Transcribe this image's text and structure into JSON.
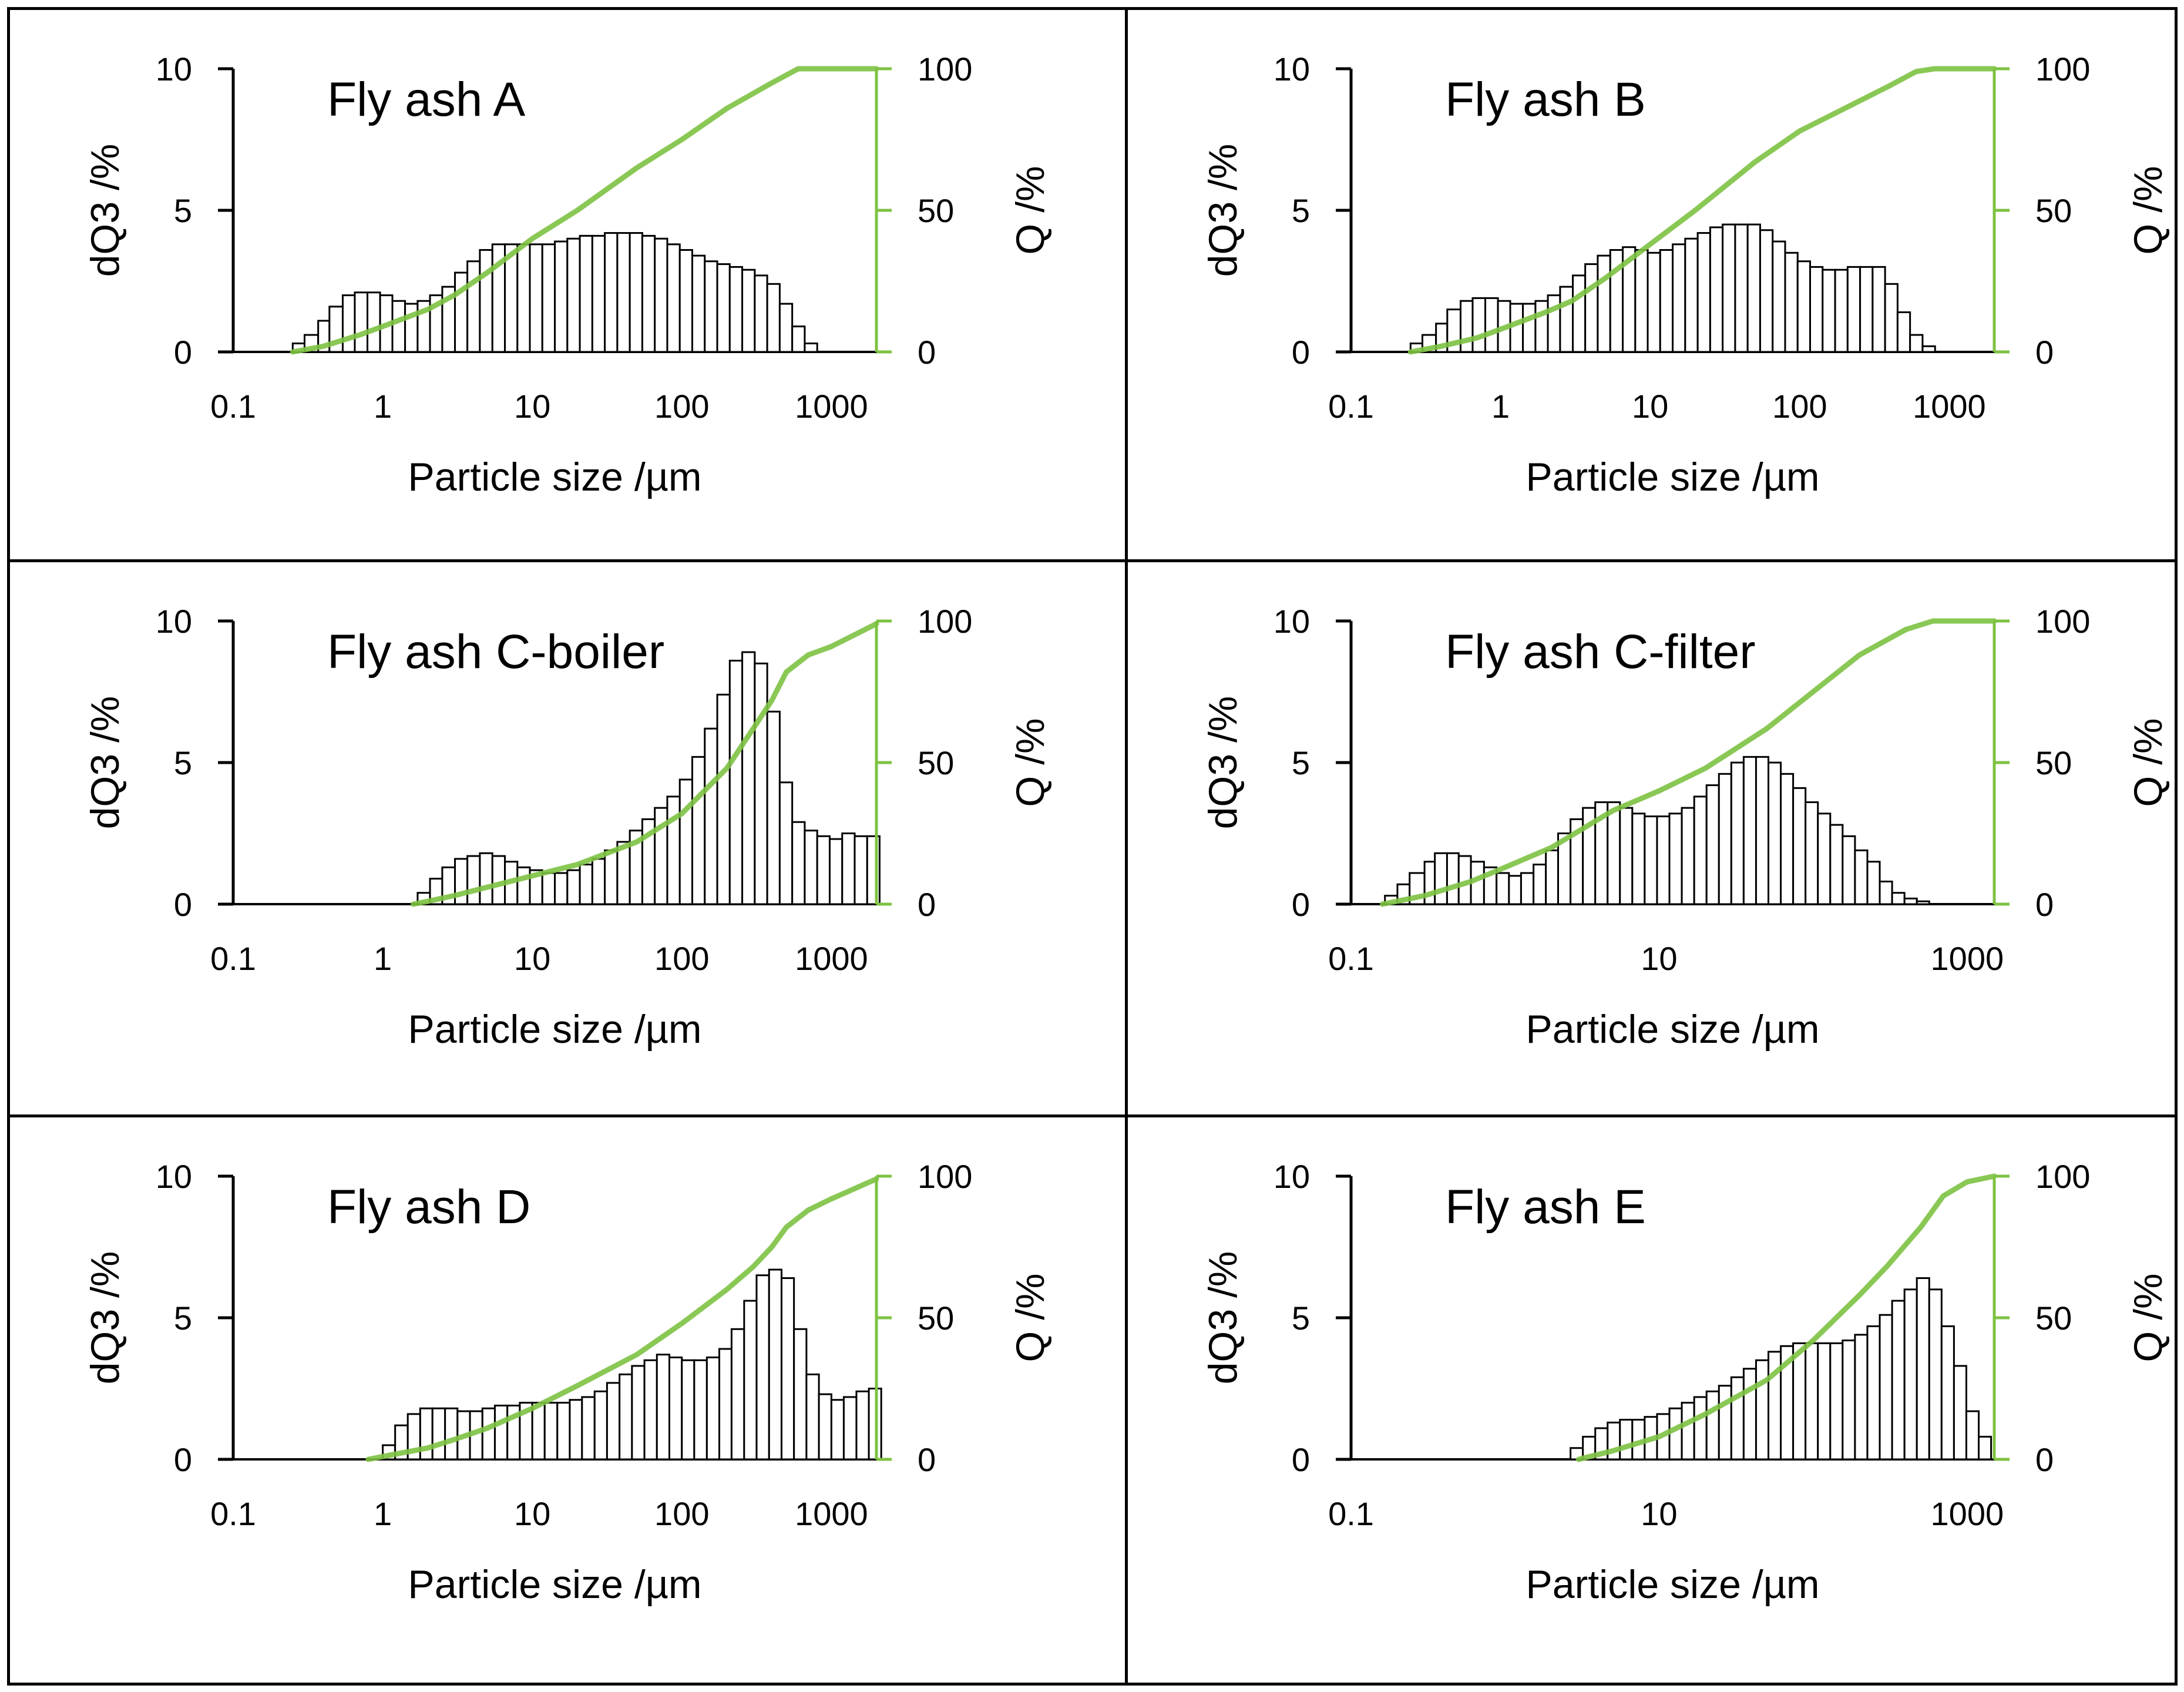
{
  "figure": {
    "left_axis_label": "dQ3 /%",
    "right_axis_label": "Q /%",
    "x_axis_label": "Particle size /µm",
    "left_ticks": [
      "0",
      "5",
      "10"
    ],
    "right_ticks": [
      "0",
      "50",
      "100"
    ],
    "colors": {
      "bar_fill": "#ffffff",
      "bar_stroke": "#000000",
      "cumulative": "#7dc242",
      "right_axis": "#7dc242"
    }
  },
  "chart_data": [
    {
      "type": "bar",
      "title": "Fly ash A",
      "xscale": "log",
      "xlim": [
        0.1,
        2000
      ],
      "ylim": [
        0,
        10
      ],
      "y2lim": [
        0,
        100
      ],
      "xticks": [
        0.1,
        1,
        10,
        100,
        1000
      ],
      "xtick_labels": [
        "0.1",
        "1",
        "10",
        "100",
        "1000"
      ],
      "xlabel": "Particle size /µm",
      "ylabel": "dQ3 /%",
      "y2label": "Q /%",
      "bar_left_edges": [
        0.25,
        0.3,
        0.37,
        0.44,
        0.54,
        0.65,
        0.79,
        0.96,
        1.16,
        1.41,
        1.71,
        2.07,
        2.5,
        3.04,
        3.68,
        4.46,
        5.41,
        6.56,
        7.95,
        9.63,
        11.67,
        14.15,
        17.15,
        20.79,
        25.2,
        30.54,
        37.02,
        44.87,
        54.39,
        65.93,
        79.91,
        96.86,
        117.4,
        142.3,
        172.5,
        209.1,
        253.4,
        307.2,
        372.3,
        451.3,
        547.0,
        663.0,
        803.7
      ],
      "values": [
        0.3,
        0.6,
        1.1,
        1.6,
        2.0,
        2.1,
        2.1,
        2.0,
        1.8,
        1.7,
        1.8,
        2.0,
        2.3,
        2.8,
        3.2,
        3.6,
        3.8,
        3.8,
        3.8,
        3.8,
        3.8,
        3.9,
        4.0,
        4.1,
        4.1,
        4.2,
        4.2,
        4.2,
        4.1,
        4.0,
        3.8,
        3.6,
        3.4,
        3.2,
        3.1,
        3.0,
        2.9,
        2.7,
        2.4,
        1.7,
        0.9,
        0.3,
        0.0
      ],
      "cumulative_x": [
        0.25,
        0.4,
        0.7,
        1,
        2,
        3,
        5,
        10,
        20,
        50,
        100,
        200,
        400,
        600,
        800,
        2000
      ],
      "cumulative_q": [
        0,
        2,
        6,
        9,
        15,
        20,
        28,
        40,
        50,
        65,
        75,
        86,
        95,
        100,
        100,
        100
      ]
    },
    {
      "type": "bar",
      "title": "Fly ash B",
      "xscale": "log",
      "xlim": [
        0.1,
        2000
      ],
      "ylim": [
        0,
        10
      ],
      "y2lim": [
        0,
        100
      ],
      "xticks": [
        0.1,
        1,
        10,
        100,
        1000
      ],
      "xtick_labels": [
        "0.1",
        "1",
        "10",
        "100",
        "1000"
      ],
      "xlabel": "Particle size /µm",
      "ylabel": "dQ3 /%",
      "y2label": "Q /%",
      "bar_left_edges": [
        0.25,
        0.3,
        0.37,
        0.44,
        0.54,
        0.65,
        0.79,
        0.96,
        1.16,
        1.41,
        1.71,
        2.07,
        2.5,
        3.04,
        3.68,
        4.46,
        5.41,
        6.56,
        7.95,
        9.63,
        11.67,
        14.15,
        17.15,
        20.79,
        25.2,
        30.54,
        37.02,
        44.87,
        54.39,
        65.93,
        79.91,
        96.86,
        117.4,
        142.3,
        172.5,
        209.1,
        253.4,
        307.2,
        372.3,
        451.3,
        547.0,
        663.0,
        803.7
      ],
      "values": [
        0.3,
        0.6,
        1.0,
        1.5,
        1.8,
        1.9,
        1.9,
        1.8,
        1.7,
        1.7,
        1.8,
        2.0,
        2.3,
        2.7,
        3.1,
        3.4,
        3.6,
        3.7,
        3.6,
        3.5,
        3.6,
        3.8,
        4.0,
        4.2,
        4.4,
        4.5,
        4.5,
        4.5,
        4.3,
        3.9,
        3.5,
        3.2,
        3.0,
        2.9,
        2.9,
        3.0,
        3.0,
        3.0,
        2.4,
        1.4,
        0.6,
        0.2,
        0.0
      ],
      "cumulative_x": [
        0.25,
        0.4,
        0.7,
        1,
        2,
        3,
        5,
        10,
        20,
        50,
        100,
        200,
        400,
        600,
        800,
        2000
      ],
      "cumulative_q": [
        0,
        2,
        5,
        8,
        14,
        18,
        26,
        38,
        50,
        67,
        78,
        86,
        94,
        99,
        100,
        100
      ]
    },
    {
      "type": "bar",
      "title": "Fly ash C-boiler",
      "xscale": "log",
      "xlim": [
        0.1,
        2000
      ],
      "ylim": [
        0,
        10
      ],
      "y2lim": [
        0,
        100
      ],
      "xticks": [
        0.1,
        1,
        10,
        100,
        1000
      ],
      "xtick_labels": [
        "0.1",
        "1",
        "10",
        "100",
        "1000"
      ],
      "xlabel": "Particle size /µm",
      "ylabel": "dQ3 /%",
      "y2label": "Q /%",
      "bar_left_edges": [
        1.71,
        2.07,
        2.5,
        3.04,
        3.68,
        4.46,
        5.41,
        6.56,
        7.95,
        9.63,
        11.67,
        14.15,
        17.15,
        20.79,
        25.2,
        30.54,
        37.02,
        44.87,
        54.39,
        65.93,
        79.91,
        96.86,
        117.4,
        142.3,
        172.5,
        209.1,
        253.4,
        307.2,
        372.3,
        451.3,
        547.0,
        663.0,
        803.7,
        974.2,
        1181,
        1431,
        1735
      ],
      "values": [
        0.4,
        0.9,
        1.3,
        1.6,
        1.7,
        1.8,
        1.7,
        1.5,
        1.3,
        1.2,
        1.1,
        1.1,
        1.2,
        1.4,
        1.6,
        1.9,
        2.2,
        2.6,
        3.0,
        3.4,
        3.8,
        4.4,
        5.2,
        6.2,
        7.4,
        8.6,
        8.9,
        8.5,
        6.8,
        4.3,
        2.9,
        2.6,
        2.4,
        2.3,
        2.5,
        2.4,
        2.4
      ],
      "cumulative_x": [
        1.6,
        2,
        3,
        5,
        10,
        20,
        50,
        100,
        200,
        300,
        400,
        500,
        700,
        1000,
        2000
      ],
      "cumulative_q": [
        0,
        1,
        3,
        6,
        10,
        14,
        22,
        32,
        48,
        62,
        72,
        82,
        88,
        91,
        99
      ]
    },
    {
      "type": "bar",
      "title": "Fly ash C-filter",
      "xscale": "log",
      "xlim": [
        0.1,
        1500
      ],
      "ylim": [
        0,
        10
      ],
      "y2lim": [
        0,
        100
      ],
      "xticks": [
        0.1,
        10,
        1000
      ],
      "xtick_labels": [
        "0.1",
        "10",
        "1000"
      ],
      "xlabel": "Particle size /µm",
      "ylabel": "dQ3 /%",
      "y2label": "Q /%",
      "bar_left_edges": [
        0.166,
        0.2,
        0.24,
        0.3,
        0.35,
        0.42,
        0.5,
        0.6,
        0.73,
        0.88,
        1.06,
        1.27,
        1.53,
        1.84,
        2.21,
        2.66,
        3.2,
        3.85,
        4.63,
        5.57,
        6.7,
        8.06,
        9.7,
        11.67,
        14.04,
        16.9,
        20.33,
        24.46,
        29.43,
        35.41,
        42.6,
        51.25,
        61.66,
        74.18,
        89.25,
        107.4,
        129.2,
        155.4,
        187.0,
        225.0,
        270.7,
        325.7,
        391.9,
        471.5,
        567.3,
        682.5,
        821.2
      ],
      "values": [
        0.3,
        0.7,
        1.1,
        1.5,
        1.8,
        1.8,
        1.7,
        1.5,
        1.3,
        1.1,
        1.0,
        1.1,
        1.4,
        1.9,
        2.5,
        3.0,
        3.4,
        3.6,
        3.6,
        3.4,
        3.2,
        3.1,
        3.1,
        3.2,
        3.4,
        3.8,
        4.2,
        4.6,
        5.0,
        5.2,
        5.2,
        5.0,
        4.6,
        4.1,
        3.6,
        3.2,
        2.8,
        2.4,
        1.9,
        1.5,
        0.8,
        0.4,
        0.2,
        0.1,
        0.0,
        0.0,
        0.0
      ],
      "cumulative_x": [
        0.16,
        0.3,
        0.6,
        1,
        2,
        5,
        10,
        20,
        50,
        100,
        200,
        400,
        600,
        1500
      ],
      "cumulative_q": [
        0,
        3,
        8,
        13,
        20,
        33,
        40,
        48,
        62,
        75,
        88,
        97,
        100,
        100
      ]
    },
    {
      "type": "bar",
      "title": "Fly ash D",
      "xscale": "log",
      "xlim": [
        0.1,
        2000
      ],
      "ylim": [
        0,
        10
      ],
      "y2lim": [
        0,
        100
      ],
      "xticks": [
        0.1,
        1,
        10,
        100,
        1000
      ],
      "xtick_labels": [
        "0.1",
        "1",
        "10",
        "100",
        "1000"
      ],
      "xlabel": "Particle size /µm",
      "ylabel": "dQ3 /%",
      "y2label": "Q /%",
      "bar_left_edges": [
        1.0,
        1.21,
        1.47,
        1.78,
        2.15,
        2.61,
        3.16,
        3.83,
        4.64,
        5.62,
        6.81,
        8.25,
        10.0,
        12.1,
        14.7,
        17.8,
        21.5,
        26.1,
        31.6,
        38.3,
        46.4,
        56.2,
        68.1,
        82.5,
        100.0,
        121.0,
        147.0,
        178.0,
        215.0,
        261.0,
        316.0,
        383.0,
        464.0,
        562.0,
        681.0,
        825.0,
        1000,
        1210,
        1470,
        1780
      ],
      "values": [
        0.5,
        1.2,
        1.6,
        1.8,
        1.8,
        1.8,
        1.7,
        1.7,
        1.8,
        1.9,
        1.9,
        2.0,
        2.0,
        2.0,
        2.0,
        2.1,
        2.2,
        2.4,
        2.7,
        3.0,
        3.3,
        3.5,
        3.7,
        3.6,
        3.5,
        3.5,
        3.6,
        3.9,
        4.6,
        5.6,
        6.5,
        6.7,
        6.4,
        4.6,
        3.0,
        2.3,
        2.1,
        2.2,
        2.4,
        2.5
      ],
      "cumulative_x": [
        0.8,
        1,
        2,
        3,
        5,
        10,
        20,
        50,
        100,
        200,
        300,
        400,
        500,
        700,
        1000,
        2000
      ],
      "cumulative_q": [
        0,
        1,
        4,
        7,
        11,
        18,
        26,
        37,
        48,
        60,
        68,
        75,
        82,
        88,
        92,
        99
      ]
    },
    {
      "type": "bar",
      "title": "Fly ash E",
      "xscale": "log",
      "xlim": [
        0.1,
        1500
      ],
      "ylim": [
        0,
        10
      ],
      "y2lim": [
        0,
        100
      ],
      "xticks": [
        0.1,
        10,
        1000
      ],
      "xtick_labels": [
        "0.1",
        "10",
        "1000"
      ],
      "xlabel": "Particle size /µm",
      "ylabel": "dQ3 /%",
      "y2label": "Q /%",
      "bar_left_edges": [
        2.66,
        3.2,
        3.85,
        4.63,
        5.57,
        6.7,
        8.06,
        9.7,
        11.67,
        14.04,
        16.9,
        20.33,
        24.46,
        29.43,
        35.41,
        42.6,
        51.25,
        61.66,
        74.18,
        89.25,
        107.4,
        129.2,
        155.4,
        187.0,
        225.0,
        270.7,
        325.7,
        391.9,
        471.5,
        567.3,
        682.5,
        821.2,
        988.0,
        1189
      ],
      "values": [
        0.4,
        0.8,
        1.1,
        1.3,
        1.4,
        1.4,
        1.5,
        1.6,
        1.8,
        2.0,
        2.2,
        2.4,
        2.6,
        2.9,
        3.2,
        3.5,
        3.8,
        4.0,
        4.1,
        4.1,
        4.1,
        4.1,
        4.2,
        4.4,
        4.7,
        5.1,
        5.6,
        6.0,
        6.4,
        6.0,
        4.7,
        3.3,
        1.7,
        0.8
      ],
      "cumulative_x": [
        3,
        5,
        10,
        20,
        50,
        100,
        200,
        300,
        500,
        700,
        1000,
        1500
      ],
      "cumulative_q": [
        0,
        3,
        8,
        16,
        28,
        42,
        58,
        68,
        82,
        93,
        98,
        100
      ]
    }
  ]
}
